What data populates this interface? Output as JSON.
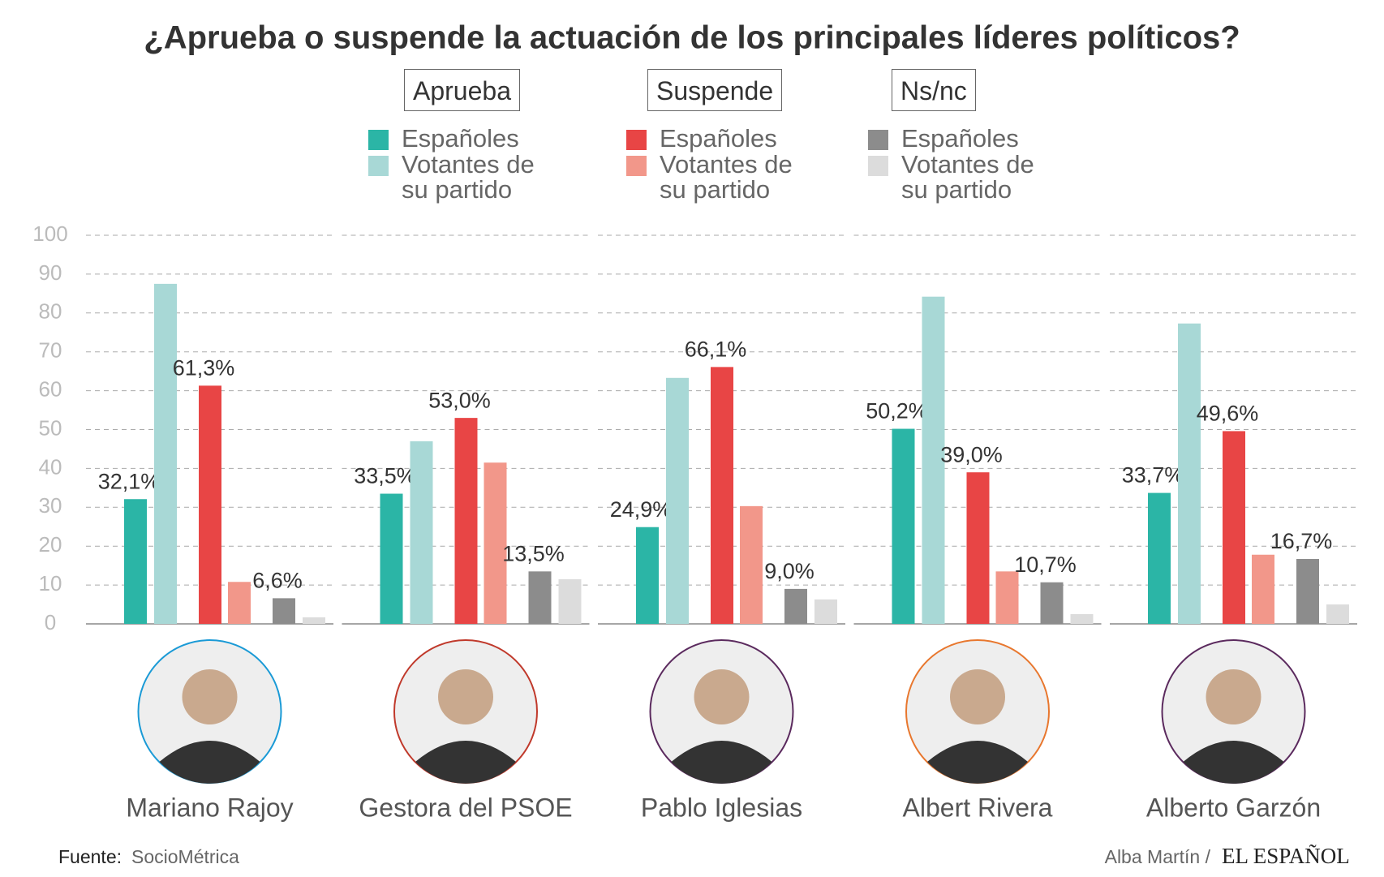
{
  "chart_data": {
    "type": "bar",
    "title": "¿Aprueba o suspende la actuación de los principales líderes políticos?",
    "legend_titles": [
      "Aprueba",
      "Suspende",
      "Ns/nc"
    ],
    "categories": [
      "Mariano Rajoy",
      "Gestora del PSOE",
      "Pablo Iglesias",
      "Albert Rivera",
      "Alberto Garzón"
    ],
    "ring_colors": [
      "#1a9ad6",
      "#c0392b",
      "#5b2a5e",
      "#e8772e",
      "#5b2a5e"
    ],
    "series": [
      {
        "name": "Españoles",
        "color": "#2bb5a6",
        "values": [
          32.1,
          33.5,
          24.9,
          50.2,
          33.7
        ],
        "value_labels": [
          "32,1%",
          "33,5%",
          "24,9%",
          "50,2%",
          "33,7%"
        ]
      },
      {
        "name": "Votantes de su partido",
        "color": "#a8d8d6",
        "values": [
          87.5,
          47,
          63.3,
          84.2,
          77.3
        ]
      },
      {
        "name": "Españoles",
        "color": "#e84545",
        "values": [
          61.3,
          53.0,
          66.1,
          39.0,
          49.6
        ],
        "value_labels": [
          "61,3%",
          "53,0%",
          "66,1%",
          "39,0%",
          "49,6%"
        ]
      },
      {
        "name": "Votantes de su partido",
        "color": "#f2978a",
        "values": [
          10.8,
          41.5,
          30.3,
          13.5,
          17.8
        ]
      },
      {
        "name": "Españoles",
        "color": "#8c8c8c",
        "values": [
          6.6,
          13.5,
          9.0,
          10.7,
          16.7
        ],
        "value_labels": [
          "6,6%",
          "13,5%",
          "9,0%",
          "10,7%",
          "16,7%"
        ]
      },
      {
        "name": "Votantes de su partido",
        "color": "#dcdcdc",
        "values": [
          1.7,
          11.5,
          6.3,
          2.5,
          5
        ]
      }
    ],
    "ylim": [
      0,
      100
    ],
    "yticks": [
      0,
      10,
      20,
      30,
      40,
      50,
      60,
      70,
      80,
      90,
      100
    ],
    "grid": true,
    "source_label": "Fuente:",
    "source": "SocioMétrica",
    "author": "Alba Martín /",
    "publisher": "EL ESPAÑOL"
  }
}
